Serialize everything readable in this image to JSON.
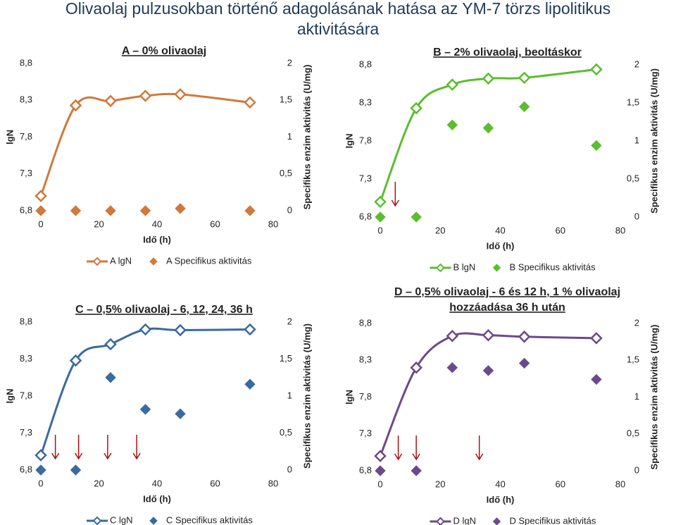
{
  "title": [
    "Olivaolaj pulzusokban történő adagolásának hatása az YM-7 törzs lipolitikus",
    "aktivitására"
  ],
  "chart_data": [
    {
      "type": "line",
      "title": "A – 0% olivaolaj",
      "xlabel": "Idő (h)",
      "ylabel": "lgN",
      "y2label": "Specifikus enzim aktivitás (U/mg)",
      "xlim": [
        0,
        80
      ],
      "xticks": [
        0,
        20,
        40,
        60,
        80
      ],
      "ylim": [
        6.8,
        8.8
      ],
      "yticks": [
        {
          "value": 6.8,
          "label": "6,8"
        },
        {
          "value": 7.3,
          "label": "7,3"
        },
        {
          "value": 7.8,
          "label": "7,8"
        },
        {
          "value": 8.3,
          "label": "8,3"
        },
        {
          "value": 8.8,
          "label": "8,8"
        }
      ],
      "y2lim": [
        0,
        2
      ],
      "y2ticks": [
        0,
        {
          "value": 0.5,
          "label": "0,5"
        },
        1,
        {
          "value": 1.5,
          "label": "1,5"
        },
        2
      ],
      "x": [
        0,
        12,
        24,
        36,
        48,
        72
      ],
      "series": [
        {
          "name": "A lgN",
          "color": "#d0793c",
          "values": [
            7.0,
            8.23,
            8.29,
            8.36,
            8.38,
            8.27
          ]
        },
        {
          "name": "A Specifikus aktivitás",
          "color": "#d0793c",
          "axis": "y2",
          "values": [
            0,
            0,
            0,
            0,
            0.03,
            0
          ]
        }
      ],
      "arrows_x": []
    },
    {
      "type": "line",
      "title": "B – 2% olivaolaj, beoltáskor",
      "xlabel": "Idő (h)",
      "ylabel": "lgN",
      "y2label": "Specifikus enzim aktivitás (U/mg)",
      "xlim": [
        0,
        80
      ],
      "xticks": [
        0,
        20,
        40,
        60,
        80
      ],
      "ylim": [
        6.8,
        8.8
      ],
      "yticks": [
        {
          "value": 6.8,
          "label": "6,8"
        },
        {
          "value": 7.3,
          "label": "7,3"
        },
        {
          "value": 7.8,
          "label": "7,8"
        },
        {
          "value": 8.3,
          "label": "8,3"
        },
        {
          "value": 8.8,
          "label": "8,8"
        }
      ],
      "y2lim": [
        0,
        2
      ],
      "y2ticks": [
        0,
        {
          "value": 0.5,
          "label": "0,5"
        },
        1,
        {
          "value": 1.5,
          "label": "1,5"
        },
        2
      ],
      "x": [
        0,
        12,
        24,
        36,
        48,
        72
      ],
      "series": [
        {
          "name": "B lgN",
          "color": "#5cbd2e",
          "values": [
            7.0,
            8.23,
            8.54,
            8.62,
            8.63,
            8.74
          ]
        },
        {
          "name": "B Specifikus aktivitás",
          "color": "#5cbd2e",
          "axis": "y2",
          "values": [
            0,
            0,
            1.21,
            1.17,
            1.45,
            0.94
          ]
        }
      ],
      "arrows_x": [
        5
      ]
    },
    {
      "type": "line",
      "title": "C – 0,5% olivaolaj - 6, 12, 24, 36 h",
      "xlabel": "Idő (h)",
      "ylabel": "lgN",
      "y2label": "Specifikus enzim aktivitás (U/mg)",
      "xlim": [
        0,
        80
      ],
      "xticks": [
        0,
        20,
        40,
        60,
        80
      ],
      "ylim": [
        6.8,
        8.8
      ],
      "yticks": [
        {
          "value": 6.8,
          "label": "6,8"
        },
        {
          "value": 7.3,
          "label": "7,3"
        },
        {
          "value": 7.8,
          "label": "7,8"
        },
        {
          "value": 8.3,
          "label": "8,3"
        },
        {
          "value": 8.8,
          "label": "8,8"
        }
      ],
      "y2lim": [
        0,
        2
      ],
      "y2ticks": [
        0,
        {
          "value": 0.5,
          "label": "0,5"
        },
        1,
        {
          "value": 1.5,
          "label": "1,5"
        },
        2
      ],
      "x": [
        0,
        12,
        24,
        36,
        48,
        72
      ],
      "series": [
        {
          "name": "C lgN",
          "color": "#3a6aa0",
          "values": [
            7.0,
            8.28,
            8.5,
            8.7,
            8.69,
            8.7
          ]
        },
        {
          "name": "C Specifikus aktivitás",
          "color": "#3a6aa0",
          "axis": "y2",
          "values": [
            0,
            0,
            1.25,
            0.82,
            0.76,
            1.16
          ]
        }
      ],
      "arrows_x": [
        5,
        13,
        23,
        33
      ]
    },
    {
      "type": "line",
      "title": [
        "D – 0,5% olivaolaj - 6 és 12 h, 1 % olivaolaj",
        "hozzáadása 36 h után"
      ],
      "xlabel": "Idő (h)",
      "ylabel": "lgN",
      "y2label": "Specifikus enzim aktivitás (U/mg)",
      "xlim": [
        0,
        80
      ],
      "xticks": [
        0,
        20,
        40,
        60,
        80
      ],
      "ylim": [
        6.8,
        8.8
      ],
      "yticks": [
        {
          "value": 6.8,
          "label": "6,8"
        },
        {
          "value": 7.3,
          "label": "7,3"
        },
        {
          "value": 7.8,
          "label": "7,8"
        },
        {
          "value": 8.3,
          "label": "8,3"
        },
        {
          "value": 8.8,
          "label": "8,8"
        }
      ],
      "y2lim": [
        0,
        2
      ],
      "y2ticks": [
        0,
        {
          "value": 0.5,
          "label": "0,5"
        },
        1,
        {
          "value": 1.5,
          "label": "1,5"
        },
        2
      ],
      "x": [
        0,
        12,
        24,
        36,
        48,
        72
      ],
      "series": [
        {
          "name": "D lgN",
          "color": "#6c4a8a",
          "values": [
            7.0,
            8.2,
            8.63,
            8.64,
            8.62,
            8.6
          ]
        },
        {
          "name": "D Specifikus aktivitás",
          "color": "#6c4a8a",
          "axis": "y2",
          "values": [
            0,
            0,
            1.4,
            1.36,
            1.46,
            1.24
          ]
        }
      ],
      "arrows_x": [
        6,
        12,
        33
      ]
    }
  ]
}
